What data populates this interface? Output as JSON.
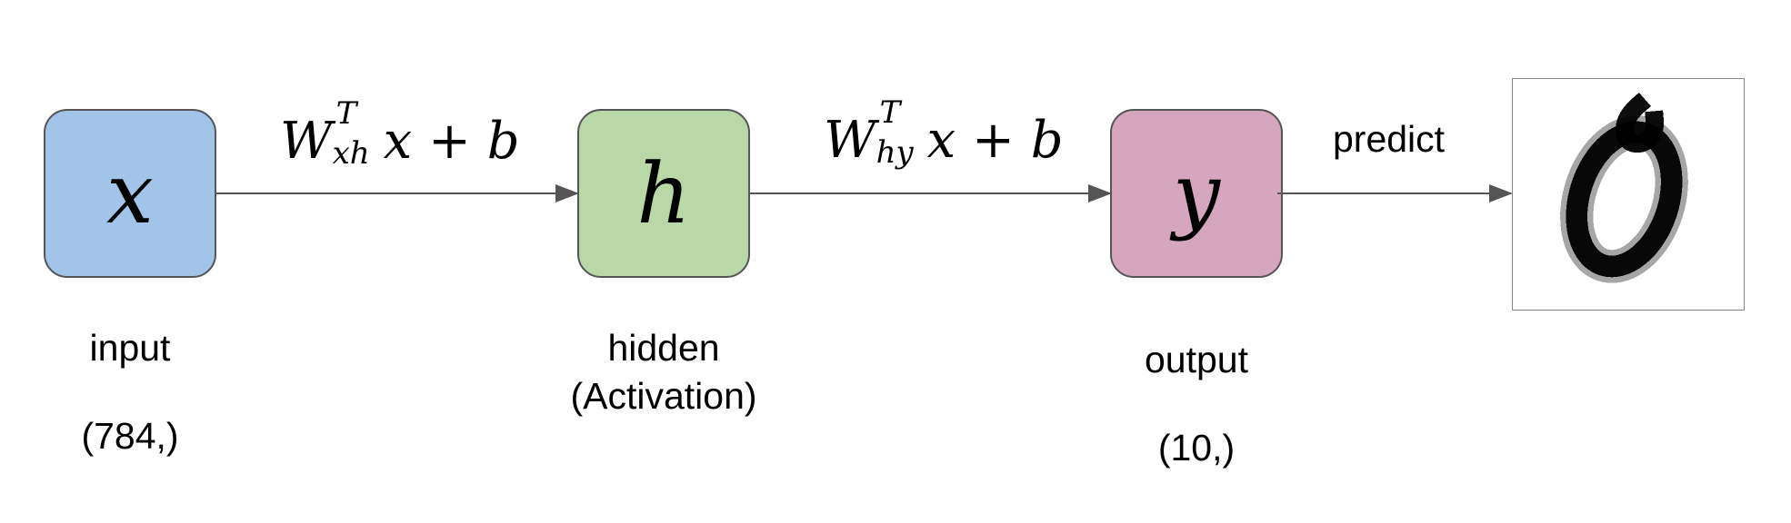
{
  "nodes": {
    "input": {
      "symbol": "x",
      "name": "input",
      "shape": "(784,)",
      "color": "#a2c4e8"
    },
    "hidden": {
      "symbol": "h",
      "name_line1": "hidden",
      "name_line2": "(Activation)",
      "color": "#b8d8a8"
    },
    "output": {
      "symbol": "y",
      "name": "output",
      "shape": "(10,)",
      "color": "#d5a6bd"
    }
  },
  "edges": {
    "input_to_hidden": {
      "W": "W",
      "sup": "T",
      "sub": "xh",
      "rest_x": "x",
      "plus": " + ",
      "b": "b"
    },
    "hidden_to_output": {
      "W": "W",
      "sup": "T",
      "sub": "hy",
      "rest_x": "x",
      "plus": " + ",
      "b": "b"
    },
    "output_to_prediction": {
      "label": "predict"
    }
  },
  "prediction_image": {
    "description": "handwritten-digit-0"
  },
  "colors": {
    "edge": "#555555",
    "border": "#555555"
  }
}
